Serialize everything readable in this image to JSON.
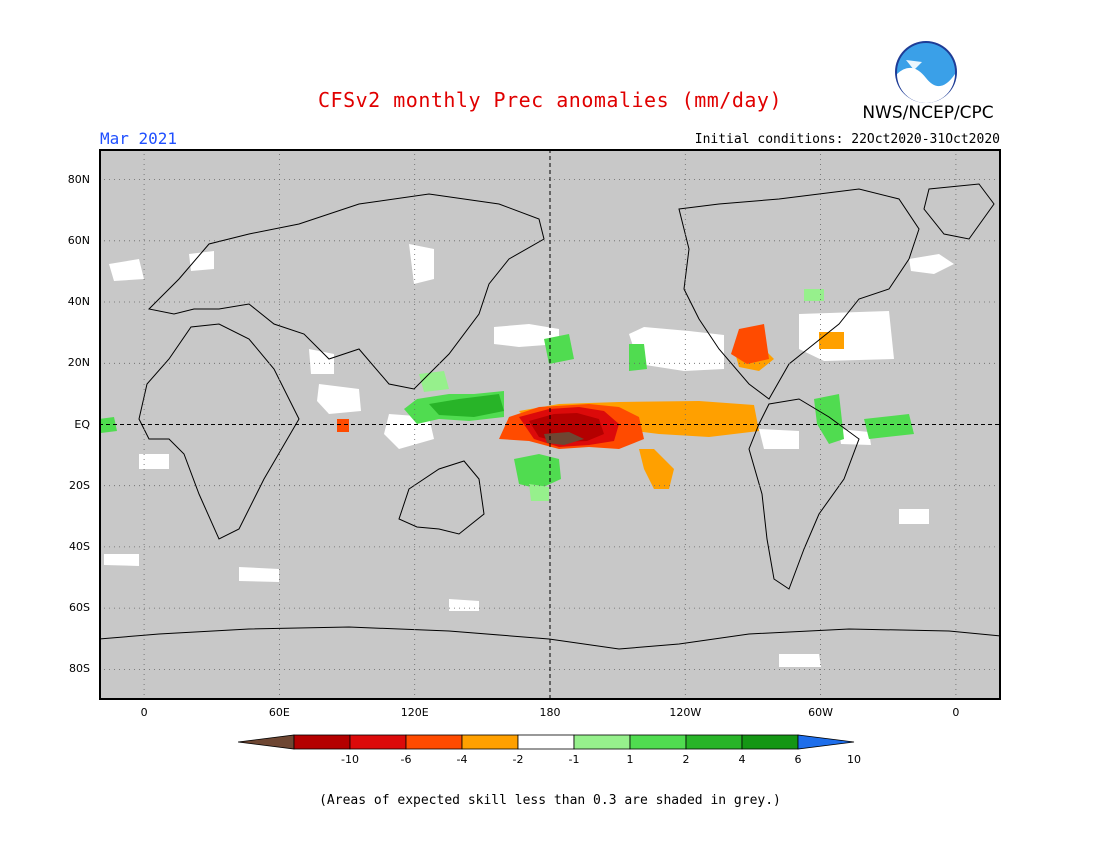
{
  "header": {
    "title": "CFSv2 monthly Prec anomalies (mm/day)",
    "month": "Mar 2021",
    "initial_conditions": "Initial conditions: 22Oct2020-31Oct2020",
    "agency": "NWS/NCEP/CPC",
    "logo_text": "NOAA"
  },
  "map": {
    "projection": "equirectangular",
    "lon_range": [
      -20,
      380
    ],
    "lat_range": [
      -90,
      90
    ],
    "y_ticks": [
      "80N",
      "60N",
      "40N",
      "20N",
      "EQ",
      "20S",
      "40S",
      "60S",
      "80S"
    ],
    "y_tick_lats": [
      80,
      60,
      40,
      20,
      0,
      -20,
      -40,
      -60,
      -80
    ],
    "x_ticks": [
      "0",
      "60E",
      "120E",
      "180",
      "120W",
      "60W",
      "0"
    ],
    "x_tick_lons": [
      0,
      60,
      120,
      180,
      240,
      300,
      360
    ],
    "background_color": "#c8c8c8",
    "grid": "dotted"
  },
  "colorbar": {
    "labels": [
      "-10",
      "-6",
      "-4",
      "-2",
      "-1",
      "1",
      "2",
      "4",
      "6",
      "10"
    ],
    "colors": [
      "#6e4632",
      "#b40000",
      "#dc0a0a",
      "#ff4b00",
      "#ffa000",
      "#ffffff",
      "#96f08c",
      "#50dc50",
      "#28b428",
      "#149614",
      "#1e6eeb"
    ]
  },
  "footnote": "(Areas of expected skill less than 0.3 are shaded in grey.)"
}
